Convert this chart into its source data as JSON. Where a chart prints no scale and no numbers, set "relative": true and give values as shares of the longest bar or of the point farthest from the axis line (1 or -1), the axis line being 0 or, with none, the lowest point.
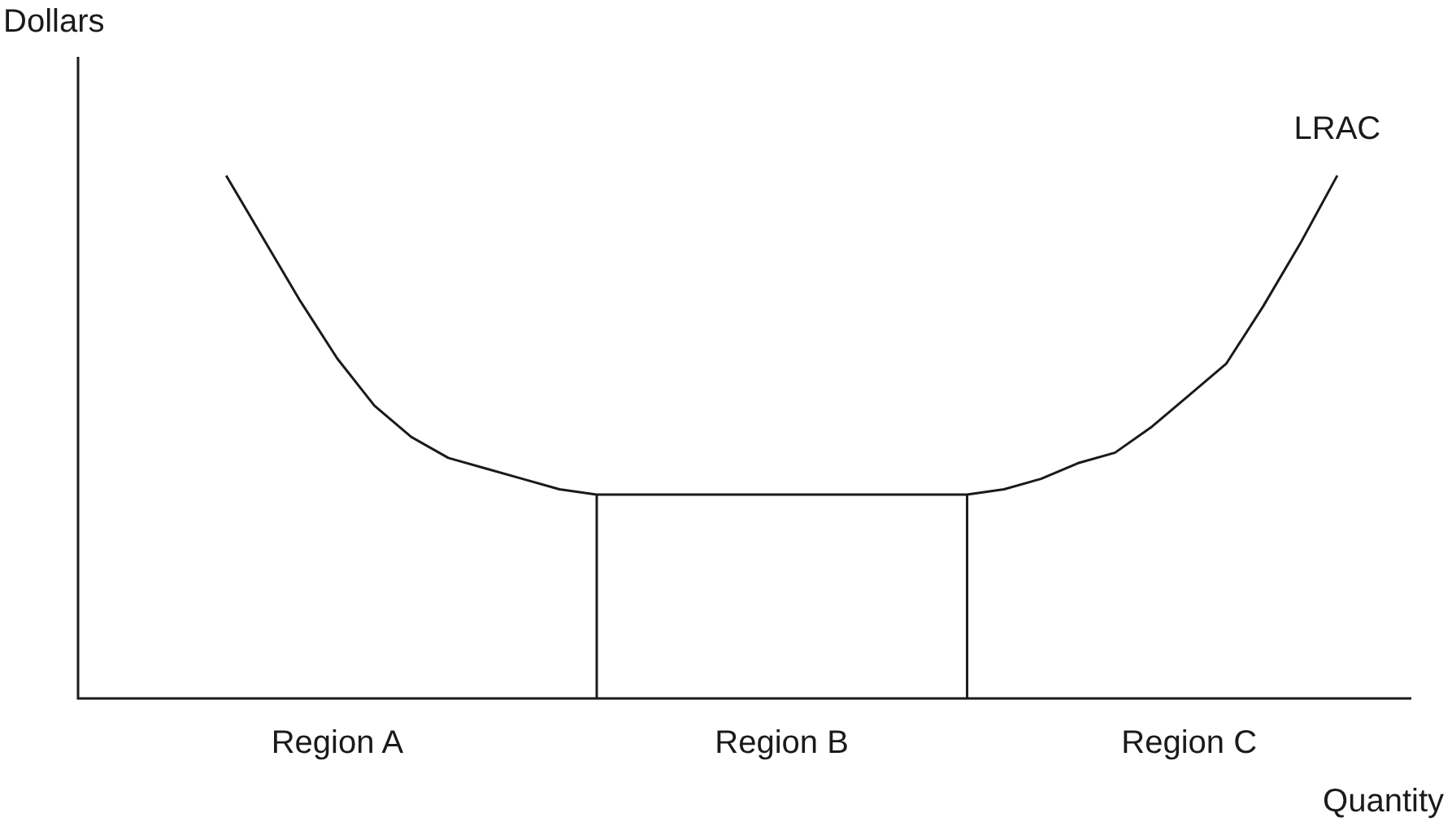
{
  "chart_data": {
    "type": "line",
    "relative": true,
    "xlabel": "Quantity",
    "ylabel": "Dollars",
    "tick_labels": false,
    "marker": "none",
    "categories": [
      null,
      null,
      null,
      null,
      null,
      null,
      null,
      null,
      null,
      null,
      null,
      null,
      null,
      null,
      null,
      null,
      null,
      null,
      null,
      null,
      null,
      null,
      null,
      null,
      null,
      null,
      null,
      null,
      null,
      null,
      null,
      null,
      null,
      null,
      null,
      null,
      null
    ],
    "series": [
      {
        "name": "LRAC",
        "color": "#1a1a1a",
        "values": [
          null,
          null,
          null,
          null,
          1,
          0.88,
          0.76,
          0.65,
          0.56,
          0.5,
          0.46,
          0.44,
          0.42,
          0.4,
          0.39,
          0.39,
          0.39,
          0.39,
          0.39,
          0.39,
          0.39,
          0.39,
          0.39,
          0.39,
          0.39,
          0.4,
          0.42,
          0.45,
          0.47,
          0.52,
          0.58,
          0.64,
          0.75,
          0.87,
          1,
          null,
          null
        ]
      }
    ],
    "annotations": [
      "Region A",
      "Region B",
      "Region C"
    ]
  }
}
